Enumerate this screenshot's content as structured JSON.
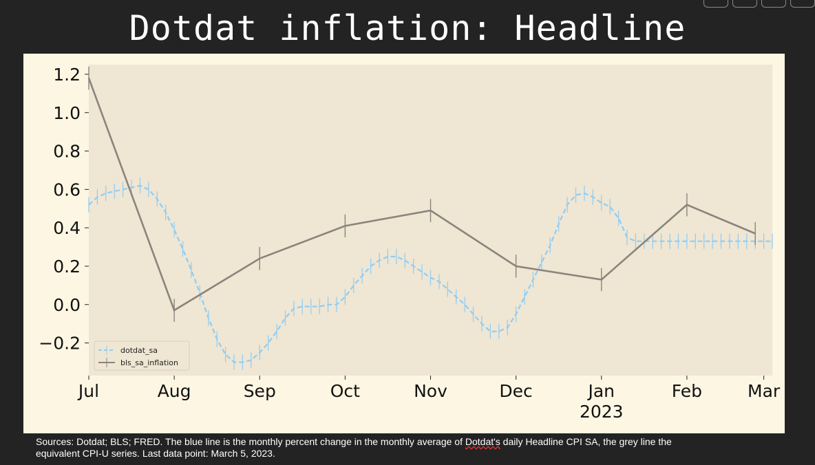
{
  "page": {
    "title": "Dotdat inflation: Headline",
    "source_line1_a": "Sources: Dotdat; BLS; FRED. The blue line is the monthly percent change in the monthly average of ",
    "source_line1_u": "Dotdat's",
    "source_line1_b": " daily Headline CPI SA, the grey line the",
    "source_line2": "equivalent CPI-U series. Last data point: March 5, 2023."
  },
  "chart_data": {
    "type": "line",
    "title": "Dotdat inflation: Headline",
    "xlabel": "",
    "ylabel": "",
    "x_ticks": [
      {
        "label": "Jul",
        "sublabel": "",
        "t": 0
      },
      {
        "label": "Aug",
        "sublabel": "",
        "t": 1
      },
      {
        "label": "Sep",
        "sublabel": "",
        "t": 2
      },
      {
        "label": "Oct",
        "sublabel": "",
        "t": 3
      },
      {
        "label": "Nov",
        "sublabel": "",
        "t": 4
      },
      {
        "label": "Dec",
        "sublabel": "",
        "t": 5
      },
      {
        "label": "Jan",
        "sublabel": "2023",
        "t": 6
      },
      {
        "label": "Feb",
        "sublabel": "",
        "t": 7
      },
      {
        "label": "Mar",
        "sublabel": "",
        "t": 7.9
      }
    ],
    "y_ticks": [
      "1.2",
      "1.0",
      "0.8",
      "0.6",
      "0.4",
      "0.2",
      "0.0",
      "−0.2"
    ],
    "y_tick_values": [
      1.2,
      1.0,
      0.8,
      0.6,
      0.4,
      0.2,
      0.0,
      -0.2
    ],
    "xlim": [
      0,
      8.0
    ],
    "ylim": [
      -0.37,
      1.25
    ],
    "grid": false,
    "legend_position": "lower-left",
    "background": "#efe6d3",
    "series": [
      {
        "name": "dotdat_sa",
        "color": "#8ecdf5",
        "style": "dashed-with-errorbars",
        "x": [
          0,
          0.1,
          0.2,
          0.3,
          0.4,
          0.5,
          0.6,
          0.7,
          0.8,
          0.9,
          1.0,
          1.1,
          1.2,
          1.3,
          1.4,
          1.5,
          1.6,
          1.7,
          1.8,
          1.9,
          2.0,
          2.1,
          2.2,
          2.3,
          2.4,
          2.5,
          2.6,
          2.7,
          2.8,
          2.9,
          3.0,
          3.1,
          3.2,
          3.3,
          3.4,
          3.5,
          3.6,
          3.7,
          3.8,
          3.9,
          4.0,
          4.1,
          4.2,
          4.3,
          4.4,
          4.5,
          4.6,
          4.7,
          4.8,
          4.9,
          5.0,
          5.1,
          5.2,
          5.3,
          5.4,
          5.5,
          5.6,
          5.7,
          5.8,
          5.9,
          6.0,
          6.1,
          6.2,
          6.3,
          6.4,
          6.5,
          6.6,
          6.7,
          6.8,
          6.9,
          7.0,
          7.1,
          7.2,
          7.3,
          7.4,
          7.5,
          7.6,
          7.7,
          7.8,
          7.9,
          8.0
        ],
        "y": [
          0.52,
          0.56,
          0.58,
          0.59,
          0.6,
          0.61,
          0.62,
          0.6,
          0.55,
          0.48,
          0.39,
          0.29,
          0.18,
          0.06,
          -0.07,
          -0.18,
          -0.26,
          -0.3,
          -0.3,
          -0.29,
          -0.25,
          -0.2,
          -0.14,
          -0.07,
          -0.02,
          -0.01,
          -0.01,
          -0.01,
          0.0,
          0.0,
          0.04,
          0.1,
          0.15,
          0.2,
          0.23,
          0.25,
          0.25,
          0.23,
          0.2,
          0.17,
          0.14,
          0.12,
          0.08,
          0.04,
          0.0,
          -0.05,
          -0.1,
          -0.14,
          -0.14,
          -0.12,
          -0.05,
          0.04,
          0.13,
          0.22,
          0.31,
          0.42,
          0.52,
          0.57,
          0.58,
          0.56,
          0.53,
          0.51,
          0.45,
          0.35,
          0.33,
          0.33,
          0.33,
          0.33,
          0.33,
          0.33,
          0.33,
          0.33,
          0.33,
          0.33,
          0.33,
          0.33,
          0.33,
          0.33,
          0.33,
          0.33,
          0.33
        ],
        "error": 0.04
      },
      {
        "name": "bls_sa_inflation",
        "color": "#8a847c",
        "style": "solid-with-errorbars",
        "x": [
          0,
          1,
          2,
          3,
          4,
          5,
          6,
          7,
          7.8
        ],
        "y": [
          1.18,
          -0.03,
          0.24,
          0.41,
          0.49,
          0.2,
          0.13,
          0.52,
          0.37
        ],
        "error": 0.06
      }
    ]
  }
}
